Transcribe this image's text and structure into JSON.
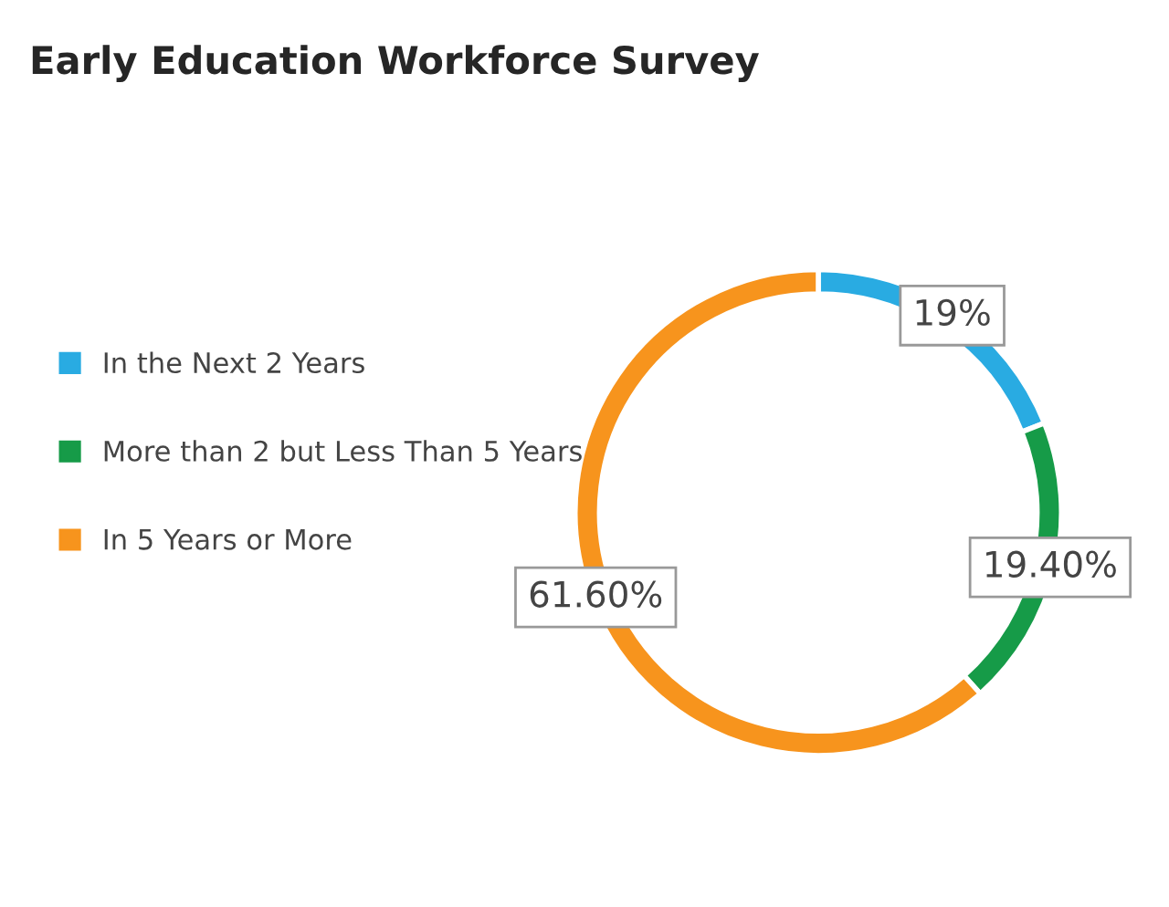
{
  "chart_data": {
    "type": "donut",
    "title": "Early Education Workforce Survey",
    "categories": [
      "In the Next 2 Years",
      "More than 2 but Less Than 5 Years",
      "In 5 Years or More"
    ],
    "values": [
      19,
      19.4,
      61.6
    ],
    "value_labels": [
      "19%",
      "19.40%",
      "61.60%"
    ],
    "colors": [
      "#29abe2",
      "#169b48",
      "#f7941d"
    ],
    "legend": "left"
  }
}
